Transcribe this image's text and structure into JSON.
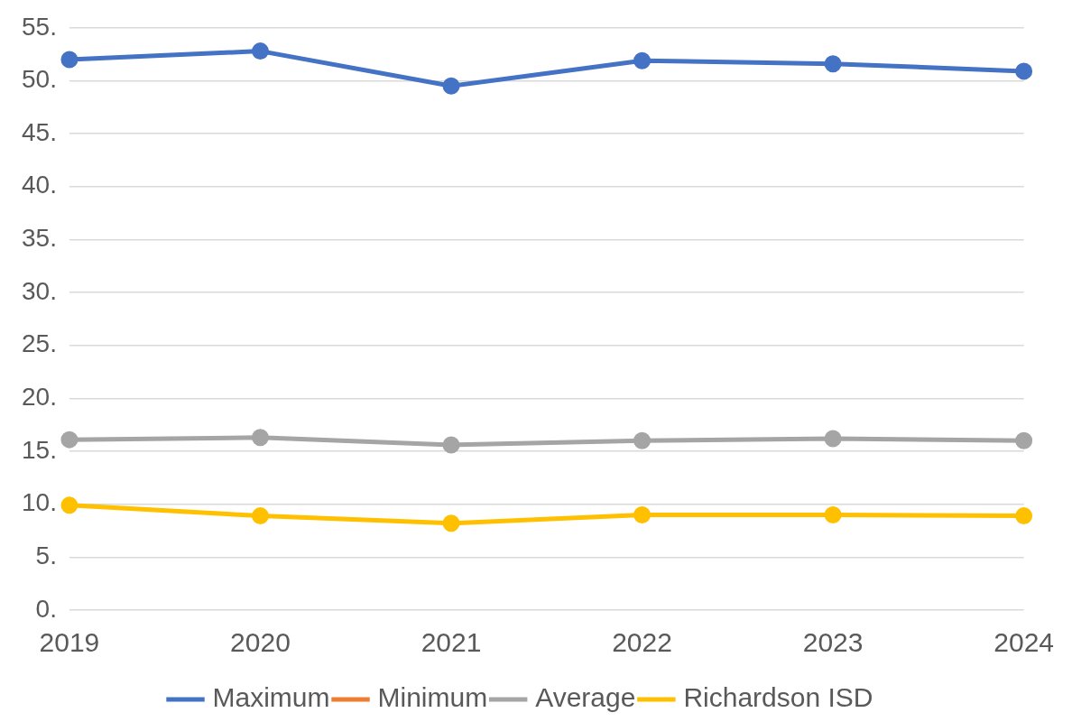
{
  "chart_data": {
    "type": "line",
    "categories": [
      "2019",
      "2020",
      "2021",
      "2022",
      "2023",
      "2024"
    ],
    "series": [
      {
        "name": "Maximum",
        "color": "#4472c4",
        "values": [
          52.0,
          52.8,
          49.5,
          51.9,
          51.6,
          50.9
        ]
      },
      {
        "name": "Minimum",
        "color": "#ed7d31",
        "values": [
          null,
          null,
          null,
          null,
          null,
          null
        ]
      },
      {
        "name": "Average",
        "color": "#a5a5a5",
        "values": [
          16.1,
          16.3,
          15.6,
          16.0,
          16.2,
          16.0
        ]
      },
      {
        "name": "Richardson ISD",
        "color": "#ffc000",
        "values": [
          9.9,
          8.9,
          8.2,
          9.0,
          9.0,
          8.9
        ]
      }
    ],
    "ylim": [
      0,
      55
    ],
    "yticks": [
      {
        "value": 0,
        "label": "0."
      },
      {
        "value": 5,
        "label": "5."
      },
      {
        "value": 10,
        "label": "10."
      },
      {
        "value": 15,
        "label": "15."
      },
      {
        "value": 20,
        "label": "20."
      },
      {
        "value": 25,
        "label": "25."
      },
      {
        "value": 30,
        "label": "30."
      },
      {
        "value": 35,
        "label": "35."
      },
      {
        "value": 40,
        "label": "40."
      },
      {
        "value": 45,
        "label": "45."
      },
      {
        "value": 50,
        "label": "50."
      },
      {
        "value": 55,
        "label": "55."
      }
    ],
    "grid": "y",
    "legend": "bottom",
    "marker": "circle"
  }
}
